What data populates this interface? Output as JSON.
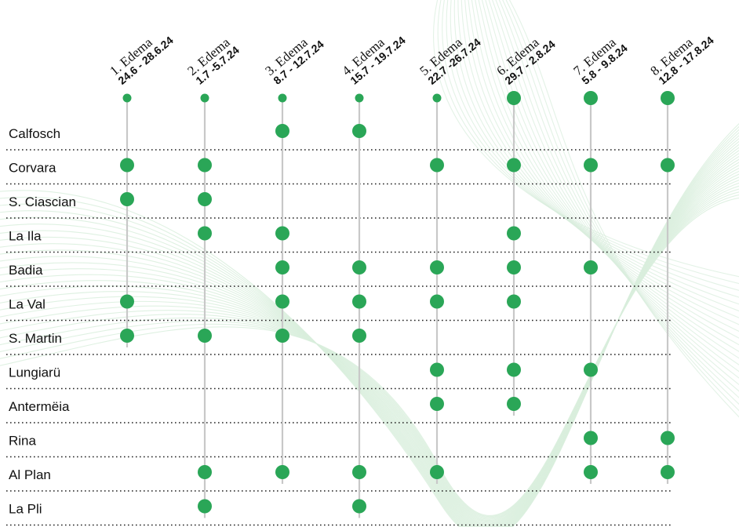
{
  "chart_data": {
    "type": "scatter",
    "title": "",
    "xlabel": "",
    "ylabel": "",
    "colors": {
      "dot": "#2aa657",
      "stem": "#c8c8c8",
      "separator": "#222222",
      "background_wave": "#d9eedd"
    },
    "weeks": [
      {
        "label": "1. Edema",
        "dates": "24.6 - 28.6.24",
        "start_small": true
      },
      {
        "label": "2. Edema",
        "dates": "1.7 -5.7.24",
        "start_small": true
      },
      {
        "label": "3. Edema",
        "dates": "8.7 - 12.7.24",
        "start_small": true
      },
      {
        "label": "4. Edema",
        "dates": "15.7 - 19.7.24",
        "start_small": true
      },
      {
        "label": "5. Edema",
        "dates": "22.7 -26.7.24",
        "start_small": true
      },
      {
        "label": "6. Edema",
        "dates": "29.7 - 2.8.24",
        "start_small": false
      },
      {
        "label": "7. Edema",
        "dates": "5.8 - 9.8.24",
        "start_small": false
      },
      {
        "label": "8. Edema",
        "dates": "12.8 - 17.8.24",
        "start_small": false
      }
    ],
    "places": [
      {
        "name": "Calfosch",
        "weeks": [
          3,
          4
        ]
      },
      {
        "name": "Corvara",
        "weeks": [
          1,
          2,
          5,
          6,
          7,
          8
        ]
      },
      {
        "name": "S. Ciascian",
        "weeks": [
          1,
          2
        ]
      },
      {
        "name": "La Ila",
        "weeks": [
          2,
          3,
          6
        ]
      },
      {
        "name": "Badia",
        "weeks": [
          3,
          4,
          5,
          6,
          7
        ]
      },
      {
        "name": "La Val",
        "weeks": [
          1,
          3,
          4,
          5,
          6
        ]
      },
      {
        "name": "S. Martin",
        "weeks": [
          1,
          2,
          3,
          4
        ]
      },
      {
        "name": "Lungiarü",
        "weeks": [
          5,
          6,
          7
        ]
      },
      {
        "name": "Antermëia",
        "weeks": [
          5,
          6
        ]
      },
      {
        "name": "Rina",
        "weeks": [
          7,
          8
        ]
      },
      {
        "name": "Al Plan",
        "weeks": [
          2,
          3,
          4,
          5,
          7,
          8
        ]
      },
      {
        "name": "La Pli",
        "weeks": [
          2,
          4
        ]
      }
    ]
  }
}
